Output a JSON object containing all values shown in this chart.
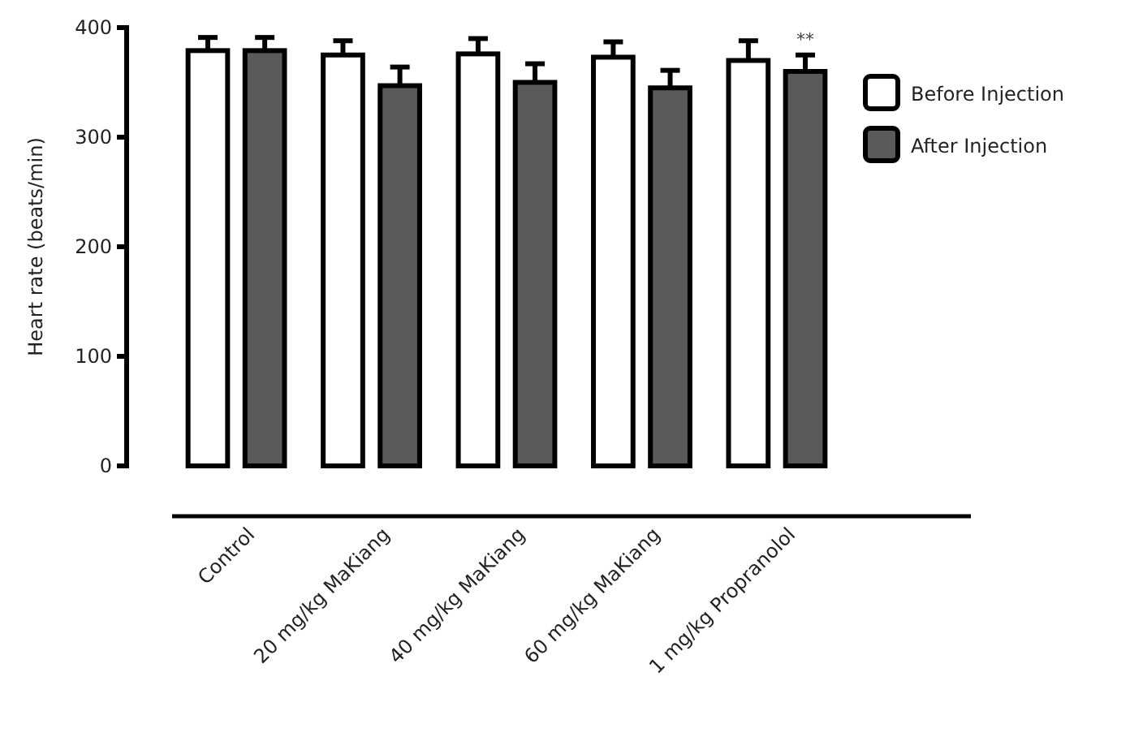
{
  "chart_data": {
    "type": "bar",
    "ylabel": "Heart rate (beats/min)",
    "categories": [
      "Control",
      "20 mg/kg MaKiang",
      "40 mg/kg MaKiang",
      "60 mg/kg MaKiang",
      "1 mg/kg Propranolol"
    ],
    "series": [
      {
        "name": "Before Injection",
        "color": "#ffffff",
        "values": [
          379,
          375,
          376,
          373,
          370
        ],
        "errors": [
          [
            379,
            391
          ],
          [
            375,
            388
          ],
          [
            376,
            390
          ],
          [
            373,
            387
          ],
          [
            370,
            388
          ]
        ]
      },
      {
        "name": "After Injection",
        "color": "#5a5a5a",
        "values": [
          379,
          347,
          350,
          345,
          360
        ],
        "errors": [
          [
            379,
            391
          ],
          [
            347,
            364
          ],
          [
            350,
            367
          ],
          [
            345,
            361
          ],
          [
            360,
            375
          ]
        ]
      }
    ],
    "ylim": [
      0,
      400
    ],
    "yticks": [
      0,
      100,
      200,
      300,
      400
    ],
    "grid": false,
    "legend": "top right",
    "annotations": [
      {
        "text": "**",
        "x": "1 mg/kg Propranolol",
        "y": 375
      }
    ]
  }
}
